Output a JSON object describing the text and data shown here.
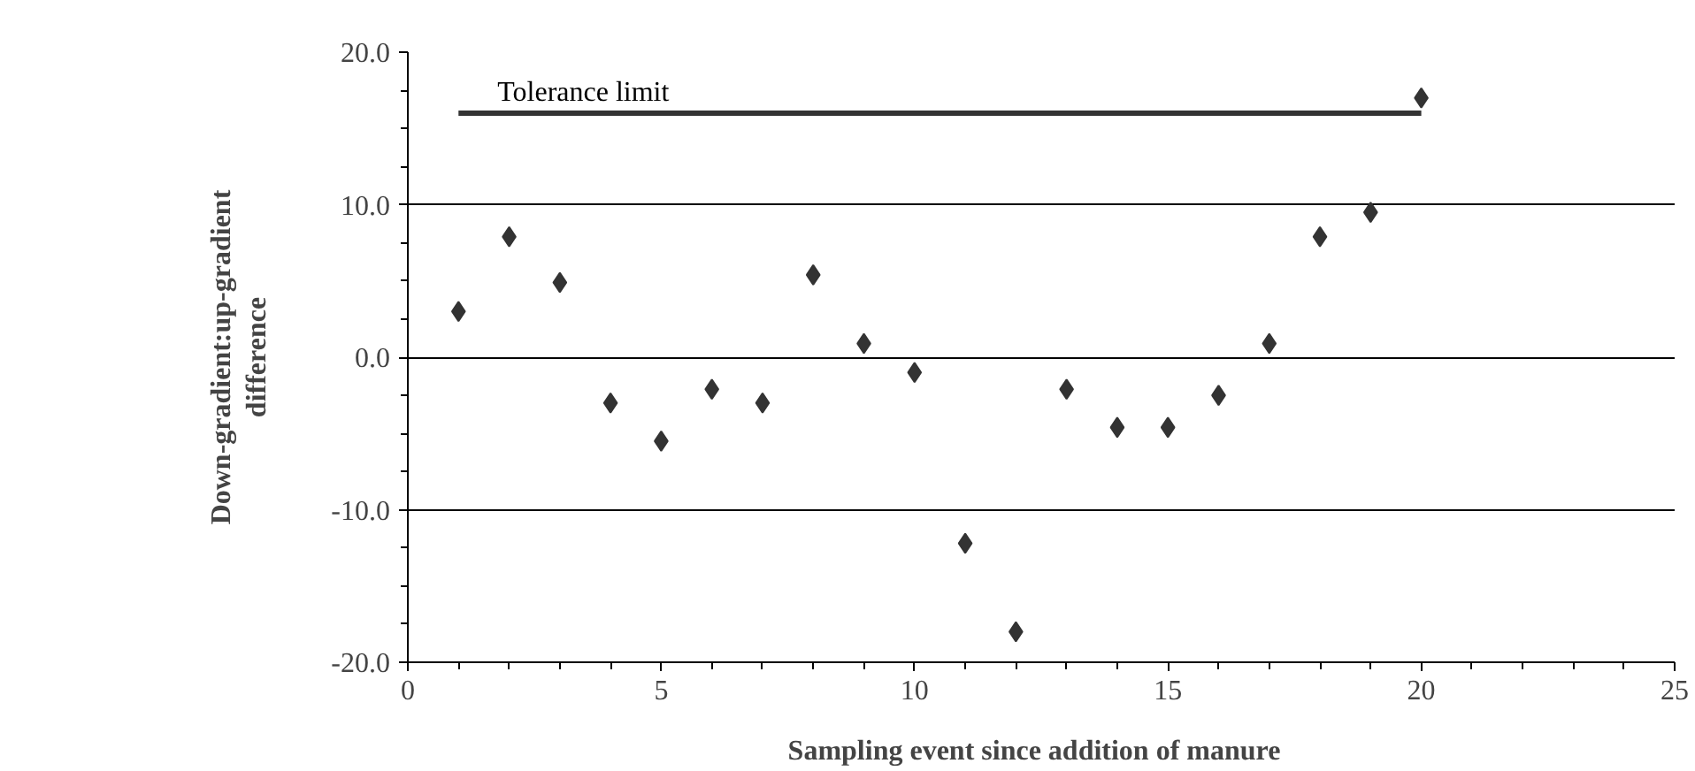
{
  "chart_data": {
    "type": "scatter",
    "xlabel": "Sampling event since addition of   manure",
    "ylabel": "Down-gradient:up-gradient\ndifference",
    "series": [
      {
        "color": "#333333",
        "marker": "diamond",
        "x": [
          1,
          2,
          3,
          4,
          5,
          6,
          7,
          8,
          9,
          10,
          11,
          12,
          13,
          14,
          15,
          16,
          17,
          18,
          19,
          20
        ],
        "values": [
          3.0,
          7.9,
          4.9,
          -3.0,
          -5.5,
          -2.1,
          -3.0,
          5.4,
          0.9,
          -1.0,
          -12.2,
          -18.0,
          -2.1,
          -4.6,
          -4.6,
          -2.5,
          0.9,
          7.9,
          9.5,
          17.0
        ]
      },
      {
        "type": "line",
        "name": "Tolerance limit",
        "color": "#333333",
        "x": [
          1,
          20
        ],
        "values": [
          16,
          16
        ]
      }
    ],
    "xlim": [
      0,
      25
    ],
    "xticks": [
      0,
      5,
      10,
      15,
      20,
      25
    ],
    "ylim": [
      -20,
      20
    ],
    "yticks": [
      {
        "value": -20,
        "label": "-20.0"
      },
      {
        "value": -10,
        "label": "-10.0"
      },
      {
        "value": 0,
        "label": "0.0"
      },
      {
        "value": 10,
        "label": "10.0"
      },
      {
        "value": 20,
        "label": "20.0"
      }
    ],
    "grid": "y"
  }
}
